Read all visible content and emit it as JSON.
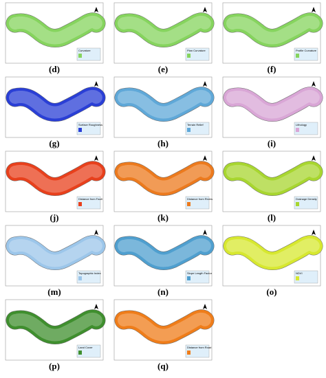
{
  "panels": [
    {
      "label": "(d)",
      "legend_title": "Curvature",
      "color": "#86d45e"
    },
    {
      "label": "(e)",
      "legend_title": "Plan Curvature",
      "color": "#86d45e"
    },
    {
      "label": "(f)",
      "legend_title": "Profile Curvature",
      "color": "#86d45e"
    },
    {
      "label": "(g)",
      "legend_title": "Surface Roughness",
      "color": "#2a3fd6"
    },
    {
      "label": "(h)",
      "legend_title": "Terrain Relief",
      "color": "#5fa8d8"
    },
    {
      "label": "(i)",
      "legend_title": "Lithology",
      "color": "#d9a6d6"
    },
    {
      "label": "(j)",
      "legend_title": "Distance from Fault",
      "color": "#e8401c"
    },
    {
      "label": "(k)",
      "legend_title": "Distance from Rivers",
      "color": "#ec7a1e"
    },
    {
      "label": "(l)",
      "legend_title": "Drainage Density",
      "color": "#a8d630"
    },
    {
      "label": "(m)",
      "legend_title": "Topographic Index",
      "color": "#9cc6ea"
    },
    {
      "label": "(n)",
      "legend_title": "Slope Length Factor",
      "color": "#4f9fcf"
    },
    {
      "label": "(o)",
      "legend_title": "NDVI",
      "color": "#d7e830"
    },
    {
      "label": "(p)",
      "legend_title": "Land Cover",
      "color": "#3f8f2e"
    },
    {
      "label": "(q)",
      "legend_title": "Distance from Road",
      "color": "#ef7d1a"
    }
  ]
}
